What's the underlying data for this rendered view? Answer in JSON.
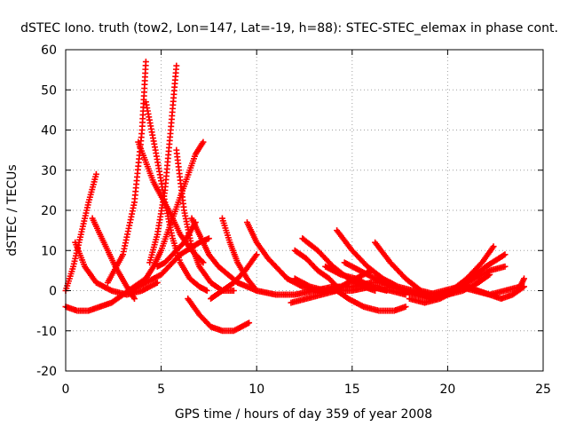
{
  "chart_data": {
    "type": "scatter",
    "title": "dSTEC Iono. truth (tow2, Lon=147, Lat=-19, h=88): STEC-STEC_elemax in phase cont.",
    "xlabel": "GPS time / hours of day 359 of year 2008",
    "ylabel": "dSTEC  / TECUs",
    "xlim": [
      0,
      25
    ],
    "ylim": [
      -20,
      60
    ],
    "xticks": [
      "0",
      "5",
      "10",
      "15",
      "20",
      "25"
    ],
    "yticks": [
      "-20",
      "-10",
      "0",
      "10",
      "20",
      "30",
      "40",
      "50",
      "60"
    ],
    "grid": true,
    "legend": "none",
    "marker": "+",
    "color": "#ff0000",
    "series": [
      {
        "x": [
          0.0,
          0.6,
          1.2,
          1.8,
          2.4,
          3.0,
          3.6,
          4.2,
          4.6,
          5.0,
          5.6,
          6.2,
          6.8,
          7.2
        ],
        "y": [
          -4,
          -5,
          -5,
          -4,
          -3,
          -1,
          1,
          3,
          6,
          10,
          18,
          26,
          34,
          37
        ]
      },
      {
        "x": [
          2.2,
          3.0,
          3.6,
          4.0,
          4.2
        ],
        "y": [
          2,
          9,
          22,
          40,
          57
        ]
      },
      {
        "x": [
          4.2,
          4.7,
          5.2,
          5.6,
          6.0,
          6.5,
          7.0,
          7.4
        ],
        "y": [
          47,
          35,
          22,
          13,
          7,
          3,
          1,
          0
        ]
      },
      {
        "x": [
          3.8,
          4.6,
          5.4,
          6.0,
          6.6,
          7.2
        ],
        "y": [
          37,
          27,
          20,
          14,
          10,
          7
        ]
      },
      {
        "x": [
          1.4,
          2.0,
          2.6,
          3.2,
          3.6
        ],
        "y": [
          18,
          12,
          6,
          1,
          -2
        ]
      },
      {
        "x": [
          1.6,
          1.2,
          0.8,
          0.4,
          0.0
        ],
        "y": [
          29,
          22,
          14,
          6,
          0
        ]
      },
      {
        "x": [
          0.5,
          1.0,
          1.6,
          2.4,
          3.2,
          4.0,
          4.8
        ],
        "y": [
          12,
          6,
          2,
          0,
          -1,
          0,
          2
        ]
      },
      {
        "x": [
          5.8,
          5.5,
          5.2,
          4.8,
          4.4
        ],
        "y": [
          56,
          40,
          25,
          14,
          7
        ]
      },
      {
        "x": [
          5.8,
          6.2,
          6.6,
          7.0,
          7.6,
          8.2,
          8.8
        ],
        "y": [
          35,
          20,
          11,
          6,
          2,
          0,
          0
        ]
      },
      {
        "x": [
          6.8,
          6.2,
          5.6,
          5.2,
          4.8
        ],
        "y": [
          17,
          12,
          9,
          7,
          6
        ]
      },
      {
        "x": [
          3.4,
          4.2,
          5.0,
          6.0,
          7.0,
          7.5
        ],
        "y": [
          0,
          2,
          4,
          9,
          12,
          13
        ]
      },
      {
        "x": [
          6.6,
          7.0,
          7.5,
          8.0,
          9.0,
          10.0
        ],
        "y": [
          18,
          14,
          9,
          6,
          2,
          0
        ]
      },
      {
        "x": [
          6.4,
          7.0,
          7.6,
          8.2,
          8.8,
          9.6
        ],
        "y": [
          -2,
          -6,
          -9,
          -10,
          -10,
          -8
        ]
      },
      {
        "x": [
          8.2,
          8.6,
          9.0,
          9.5,
          10.0,
          11.0
        ],
        "y": [
          18,
          12,
          7,
          3,
          0,
          -1
        ]
      },
      {
        "x": [
          9.5,
          10.0,
          10.6,
          11.2,
          11.6
        ],
        "y": [
          17,
          12,
          8,
          5,
          3
        ]
      },
      {
        "x": [
          7.6,
          8.2,
          8.8,
          9.4,
          10.0
        ],
        "y": [
          -2,
          0,
          2,
          5,
          9
        ]
      },
      {
        "x": [
          11.6,
          12.4,
          13.2,
          14.0,
          15.0,
          16.0,
          17.0,
          17.8
        ],
        "y": [
          3,
          1,
          0,
          0,
          0,
          1,
          0,
          -1
        ]
      },
      {
        "x": [
          11.0,
          12.0,
          13.0,
          14.0,
          15.0,
          16.0,
          17.0
        ],
        "y": [
          -1,
          -1,
          0,
          1,
          1,
          2,
          2
        ]
      },
      {
        "x": [
          11.8,
          12.6,
          13.4,
          14.2,
          14.8,
          15.6,
          16.4,
          17.2,
          17.8
        ],
        "y": [
          -3,
          -2,
          -1,
          0,
          -2,
          -4,
          -5,
          -5,
          -4
        ]
      },
      {
        "x": [
          12.0,
          12.8,
          13.6,
          14.4,
          15.2,
          16.0
        ],
        "y": [
          3,
          1,
          0,
          1,
          3,
          5
        ]
      },
      {
        "x": [
          12.4,
          13.2,
          14.0,
          14.8,
          15.6,
          16.2
        ],
        "y": [
          13,
          10,
          6,
          3,
          1,
          0
        ]
      },
      {
        "x": [
          12.0,
          12.6,
          13.2,
          13.8,
          14.4
        ],
        "y": [
          10,
          8,
          5,
          3,
          0
        ]
      },
      {
        "x": [
          13.6,
          14.4,
          15.2,
          16.0,
          16.8
        ],
        "y": [
          6,
          4,
          3,
          1,
          0
        ]
      },
      {
        "x": [
          14.2,
          15.0,
          15.8,
          16.6,
          17.4,
          18.2,
          19.0
        ],
        "y": [
          15,
          10,
          6,
          3,
          1,
          0,
          -1
        ]
      },
      {
        "x": [
          14.6,
          15.4,
          16.2,
          17.0,
          17.8,
          18.6,
          19.4
        ],
        "y": [
          7,
          5,
          3,
          1,
          0,
          -1,
          -2
        ]
      },
      {
        "x": [
          16.2,
          17.0,
          17.8,
          18.6,
          19.4,
          20.2,
          21.0,
          21.8,
          22.4
        ],
        "y": [
          12,
          7,
          3,
          0,
          -1,
          0,
          3,
          7,
          11
        ]
      },
      {
        "x": [
          17.6,
          18.4,
          19.2,
          20.0,
          20.8,
          21.6,
          22.2
        ],
        "y": [
          0,
          -1,
          -2,
          -1,
          0,
          2,
          4
        ]
      },
      {
        "x": [
          18.0,
          18.8,
          19.6,
          20.4,
          21.2,
          22.0,
          23.0
        ],
        "y": [
          -2,
          -3,
          -2,
          0,
          3,
          6,
          9
        ]
      },
      {
        "x": [
          19.0,
          19.8,
          20.6,
          21.4,
          22.2,
          23.0,
          23.8,
          24.0
        ],
        "y": [
          -1,
          0,
          1,
          0,
          -1,
          0,
          1,
          3
        ]
      },
      {
        "x": [
          21.0,
          21.6,
          22.2,
          22.8,
          23.4,
          24.0
        ],
        "y": [
          1,
          0,
          -1,
          -2,
          -1,
          1
        ]
      },
      {
        "x": [
          19.8,
          20.6,
          21.4,
          22.2,
          23.0
        ],
        "y": [
          -1,
          1,
          3,
          5,
          6
        ]
      }
    ]
  }
}
